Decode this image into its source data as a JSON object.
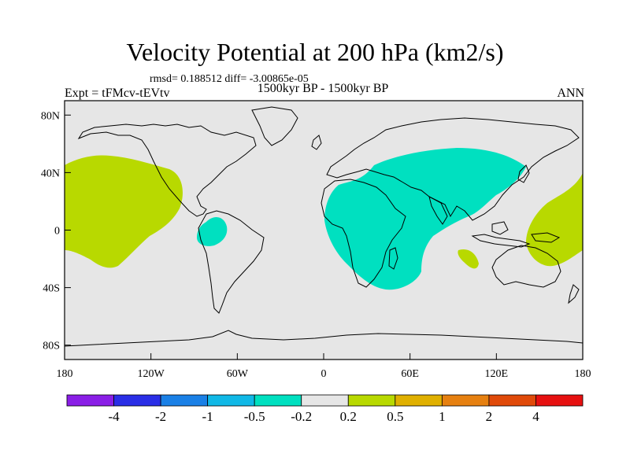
{
  "title": "Velocity Potential at 200 hPa (km2/s)",
  "stats": "rmsd= 0.188512 diff= -3.00865e-05",
  "left_label": "Expt = tFMcv-tEVtv",
  "center_label": "1500kyr BP - 1500kyr BP",
  "right_label": "ANN",
  "map": {
    "projection": "cylindrical equidistant",
    "lon_range": [
      -180,
      180
    ],
    "lat_range": [
      -90,
      90
    ],
    "background_color": "#e6e6e6",
    "coastline_color": "#000000",
    "lon_ticks": [
      {
        "value": -180,
        "label": "180"
      },
      {
        "value": -120,
        "label": "120W"
      },
      {
        "value": -60,
        "label": "60W"
      },
      {
        "value": 0,
        "label": "0"
      },
      {
        "value": 60,
        "label": "60E"
      },
      {
        "value": 120,
        "label": "120E"
      },
      {
        "value": 180,
        "label": "180"
      }
    ],
    "lat_ticks": [
      {
        "value": 80,
        "label": "80N"
      },
      {
        "value": 40,
        "label": "40N"
      },
      {
        "value": 0,
        "label": "0"
      },
      {
        "value": -40,
        "label": "40S"
      },
      {
        "value": -80,
        "label": "80S"
      }
    ],
    "regions": [
      {
        "name": "north-pacific-positive",
        "category": "0.2 to 0.5",
        "color": "#b8d900"
      },
      {
        "name": "west-pacific-positive",
        "category": "0.2 to 0.5",
        "color": "#b8d900"
      },
      {
        "name": "indian-ocean-small-positive",
        "category": "0.2 to 0.5",
        "color": "#b8d900"
      },
      {
        "name": "africa-asia-negative",
        "category": "-0.5 to -0.2",
        "color": "#00e0c0"
      },
      {
        "name": "south-america-negative",
        "category": "-0.5 to -0.2",
        "color": "#00e0c0"
      }
    ]
  },
  "colorbar": {
    "colors": [
      "#8a1ee6",
      "#2a2ee6",
      "#1a80e6",
      "#10b8e6",
      "#00e0c0",
      "#e6e6e6",
      "#b8d900",
      "#e0b000",
      "#e68010",
      "#e04a0a",
      "#e61010"
    ],
    "labels": [
      "-4",
      "-2",
      "-1",
      "-0.5",
      "-0.2",
      "0.2",
      "0.5",
      "1",
      "2",
      "4"
    ]
  }
}
